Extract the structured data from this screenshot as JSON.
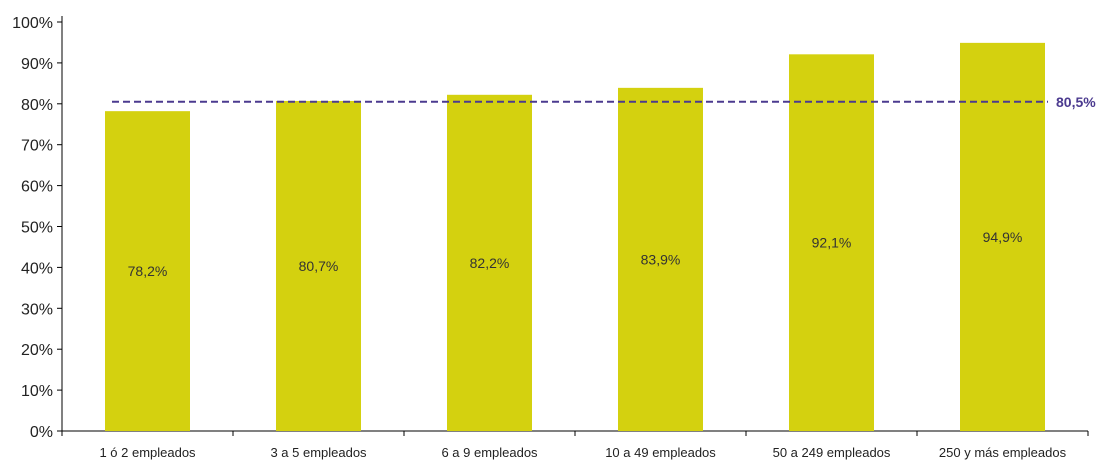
{
  "chart_data": {
    "type": "bar",
    "categories": [
      "1 ó 2 empleados",
      "3 a 5 empleados",
      "6 a 9 empleados",
      "10 a 49 empleados",
      "50 a 249 empleados",
      "250 y más empleados"
    ],
    "values": [
      78.2,
      80.7,
      82.2,
      83.9,
      92.1,
      94.9
    ],
    "data_labels": [
      "78,2%",
      "80,7%",
      "82,2%",
      "83,9%",
      "92,1%",
      "94,9%"
    ],
    "y_ticks": [
      "0%",
      "10%",
      "20%",
      "30%",
      "40%",
      "50%",
      "60%",
      "70%",
      "80%",
      "90%",
      "100%"
    ],
    "ylim": [
      0,
      100
    ],
    "reference_line": {
      "value": 80.5,
      "label": "80,5%",
      "style": "dashed"
    },
    "grid": false,
    "legend": "none",
    "colors": {
      "bar": "#d4d10f",
      "reference": "#4b3a8f",
      "axis": "#000000"
    }
  }
}
